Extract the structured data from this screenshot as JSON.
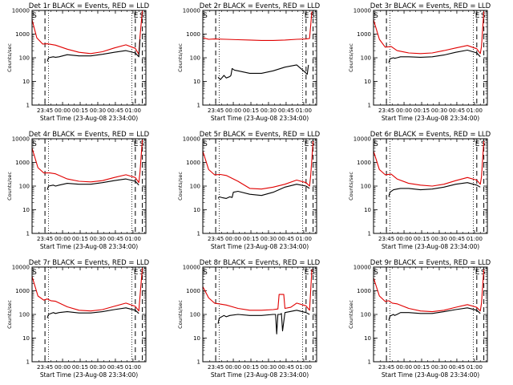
{
  "colors": {
    "events": "#000000",
    "lld": "#e00000",
    "frame": "#000000",
    "background": "#ffffff"
  },
  "xlabel": "Start Time (23-Aug-08 23:34:00)",
  "ylabel": "Counts/sec",
  "x_tick_labels": [
    "23:45",
    "00:00",
    "00:15",
    "00:30",
    "00:45",
    "01:00"
  ],
  "y_tick_labels": [
    "1",
    "10",
    "100",
    "1000",
    "10000"
  ],
  "markers": {
    "s": "S",
    "e": "E"
  },
  "chart_data": [
    {
      "type": "line",
      "title": "Det 1r BLACK = Events, RED = LLD",
      "markers": [
        "S",
        "E",
        "S"
      ],
      "xlim": [
        0,
        97
      ],
      "ylim": [
        1,
        10000
      ],
      "yscale": "log",
      "series": [
        {
          "name": "LLD",
          "x": [
            0,
            4,
            9,
            13,
            20,
            30,
            40,
            50,
            60,
            70,
            80,
            88,
            91,
            92,
            94
          ],
          "y": [
            4000,
            700,
            380,
            390,
            340,
            230,
            170,
            150,
            180,
            260,
            350,
            250,
            140,
            800,
            10000
          ]
        },
        {
          "name": "Events",
          "x": [
            13,
            14,
            18,
            20,
            23,
            30,
            40,
            50,
            60,
            70,
            80,
            88,
            91,
            92
          ],
          "y": [
            70,
            100,
            110,
            105,
            110,
            135,
            120,
            120,
            140,
            170,
            200,
            160,
            110,
            600
          ]
        }
      ]
    },
    {
      "type": "line",
      "title": "Det 2r BLACK = Events, RED = LLD",
      "markers": [
        "S",
        "E",
        "S"
      ],
      "xlim": [
        0,
        97
      ],
      "ylim": [
        1,
        10000
      ],
      "yscale": "log",
      "series": [
        {
          "name": "LLD",
          "x": [
            0,
            5,
            10,
            20,
            30,
            40,
            50,
            60,
            70,
            80,
            88,
            91,
            93
          ],
          "y": [
            700,
            600,
            620,
            600,
            580,
            560,
            540,
            540,
            560,
            600,
            620,
            650,
            9000
          ]
        },
        {
          "name": "Events",
          "x": [
            13,
            15,
            18,
            20,
            23,
            24,
            25,
            27,
            30,
            40,
            50,
            60,
            70,
            80,
            87,
            89,
            90
          ],
          "y": [
            15,
            12,
            18,
            14,
            16,
            18,
            35,
            30,
            28,
            22,
            22,
            28,
            40,
            50,
            25,
            20,
            50
          ]
        }
      ]
    },
    {
      "type": "line",
      "title": "Det 3r BLACK = Events, RED = LLD",
      "markers": [
        "S",
        "E",
        "S"
      ],
      "xlim": [
        0,
        97
      ],
      "ylim": [
        1,
        10000
      ],
      "yscale": "log",
      "series": [
        {
          "name": "LLD",
          "x": [
            0,
            5,
            10,
            15,
            20,
            30,
            40,
            50,
            60,
            70,
            80,
            88,
            91,
            92,
            94
          ],
          "y": [
            4000,
            600,
            280,
            300,
            200,
            160,
            150,
            160,
            200,
            260,
            330,
            240,
            150,
            300,
            9000
          ]
        },
        {
          "name": "Events",
          "x": [
            13,
            14,
            17,
            18,
            20,
            23,
            30,
            40,
            50,
            60,
            70,
            80,
            88,
            91
          ],
          "y": [
            60,
            90,
            100,
            95,
            100,
            110,
            110,
            105,
            110,
            130,
            170,
            210,
            160,
            110
          ]
        }
      ]
    },
    {
      "type": "line",
      "title": "Det 4r BLACK = Events, RED = LLD",
      "markers": [
        "S",
        "E",
        "S"
      ],
      "xlim": [
        0,
        97
      ],
      "ylim": [
        1,
        10000
      ],
      "yscale": "log",
      "series": [
        {
          "name": "LLD",
          "x": [
            0,
            5,
            10,
            15,
            20,
            30,
            40,
            50,
            60,
            70,
            80,
            88,
            91,
            92,
            94
          ],
          "y": [
            4000,
            600,
            360,
            360,
            330,
            200,
            160,
            150,
            170,
            230,
            300,
            230,
            140,
            400,
            9000
          ]
        },
        {
          "name": "Events",
          "x": [
            13,
            14,
            18,
            20,
            23,
            30,
            40,
            50,
            60,
            70,
            80,
            88,
            91
          ],
          "y": [
            70,
            100,
            110,
            100,
            110,
            130,
            120,
            120,
            140,
            170,
            200,
            160,
            110
          ]
        }
      ]
    },
    {
      "type": "line",
      "title": "Det 5r BLACK = Events, RED = LLD",
      "markers": [
        "S",
        "E",
        "S"
      ],
      "xlim": [
        0,
        97
      ],
      "ylim": [
        1,
        10000
      ],
      "yscale": "log",
      "series": [
        {
          "name": "LLD",
          "x": [
            0,
            5,
            10,
            15,
            20,
            30,
            40,
            50,
            60,
            70,
            80,
            88,
            91,
            92,
            94
          ],
          "y": [
            3000,
            500,
            300,
            310,
            280,
            160,
            80,
            75,
            90,
            120,
            180,
            140,
            100,
            300,
            8000
          ]
        },
        {
          "name": "Events",
          "x": [
            13,
            14,
            17,
            20,
            23,
            25,
            26,
            30,
            40,
            50,
            60,
            70,
            80,
            88,
            91
          ],
          "y": [
            30,
            35,
            32,
            30,
            35,
            33,
            55,
            60,
            45,
            40,
            55,
            90,
            120,
            100,
            80
          ]
        }
      ]
    },
    {
      "type": "line",
      "title": "Det 6r BLACK = Events, RED = LLD",
      "markers": [
        "S",
        "E",
        "S"
      ],
      "xlim": [
        0,
        97
      ],
      "ylim": [
        1,
        10000
      ],
      "yscale": "log",
      "series": [
        {
          "name": "LLD",
          "x": [
            0,
            5,
            10,
            15,
            20,
            30,
            40,
            50,
            60,
            70,
            80,
            88,
            91,
            92,
            94
          ],
          "y": [
            3000,
            500,
            300,
            320,
            200,
            130,
            110,
            100,
            120,
            170,
            230,
            180,
            120,
            250,
            8000
          ]
        },
        {
          "name": "Events",
          "x": [
            13,
            14,
            17,
            20,
            23,
            30,
            40,
            50,
            60,
            70,
            80,
            88,
            91
          ],
          "y": [
            35,
            55,
            70,
            75,
            80,
            80,
            70,
            75,
            90,
            120,
            140,
            110,
            90
          ]
        }
      ]
    },
    {
      "type": "line",
      "title": "Det 7r BLACK = Events, RED = LLD",
      "markers": [
        "S",
        "E",
        "S"
      ],
      "xlim": [
        0,
        97
      ],
      "ylim": [
        1,
        10000
      ],
      "yscale": "log",
      "series": [
        {
          "name": "LLD",
          "x": [
            0,
            5,
            10,
            13,
            16,
            20,
            30,
            40,
            50,
            60,
            70,
            80,
            88,
            91,
            92,
            94
          ],
          "y": [
            4000,
            600,
            400,
            450,
            380,
            360,
            210,
            150,
            140,
            160,
            220,
            300,
            220,
            140,
            600,
            9000
          ]
        },
        {
          "name": "Events",
          "x": [
            13,
            14,
            18,
            20,
            23,
            30,
            40,
            50,
            60,
            70,
            80,
            88,
            91
          ],
          "y": [
            70,
            100,
            120,
            110,
            120,
            130,
            115,
            115,
            130,
            160,
            190,
            150,
            110
          ]
        }
      ]
    },
    {
      "type": "line",
      "title": "Det 8r BLACK = Events, RED = LLD",
      "markers": [
        "S",
        "E",
        "S"
      ],
      "xlim": [
        0,
        97
      ],
      "ylim": [
        1,
        10000
      ],
      "yscale": "log",
      "series": [
        {
          "name": "LLD",
          "x": [
            0,
            5,
            10,
            20,
            30,
            40,
            50,
            60,
            64,
            65,
            69,
            70,
            75,
            80,
            88,
            91,
            93
          ],
          "y": [
            1500,
            500,
            300,
            250,
            180,
            150,
            150,
            160,
            170,
            700,
            700,
            180,
            200,
            300,
            230,
            150,
            8000
          ]
        },
        {
          "name": "Events",
          "x": [
            13,
            14,
            18,
            20,
            23,
            30,
            40,
            50,
            60,
            62,
            63,
            64,
            66,
            67,
            68,
            70,
            80,
            88,
            91
          ],
          "y": [
            40,
            70,
            90,
            80,
            90,
            100,
            90,
            90,
            100,
            100,
            15,
            100,
            100,
            110,
            20,
            120,
            150,
            120,
            100
          ]
        }
      ]
    },
    {
      "type": "line",
      "title": "Det 9r BLACK = Events, RED = LLD",
      "markers": [
        "S",
        "E",
        "S"
      ],
      "xlim": [
        0,
        97
      ],
      "ylim": [
        1,
        10000
      ],
      "yscale": "log",
      "series": [
        {
          "name": "LLD",
          "x": [
            0,
            5,
            10,
            13,
            16,
            20,
            30,
            40,
            50,
            60,
            70,
            80,
            88,
            91,
            92,
            94
          ],
          "y": [
            3500,
            600,
            350,
            380,
            300,
            280,
            180,
            140,
            130,
            150,
            200,
            260,
            200,
            140,
            300,
            8000
          ]
        },
        {
          "name": "Events",
          "x": [
            13,
            14,
            17,
            18,
            20,
            23,
            30,
            40,
            50,
            60,
            70,
            80,
            88,
            91
          ],
          "y": [
            55,
            85,
            100,
            90,
            100,
            120,
            120,
            110,
            110,
            130,
            160,
            190,
            150,
            110
          ]
        }
      ]
    }
  ]
}
